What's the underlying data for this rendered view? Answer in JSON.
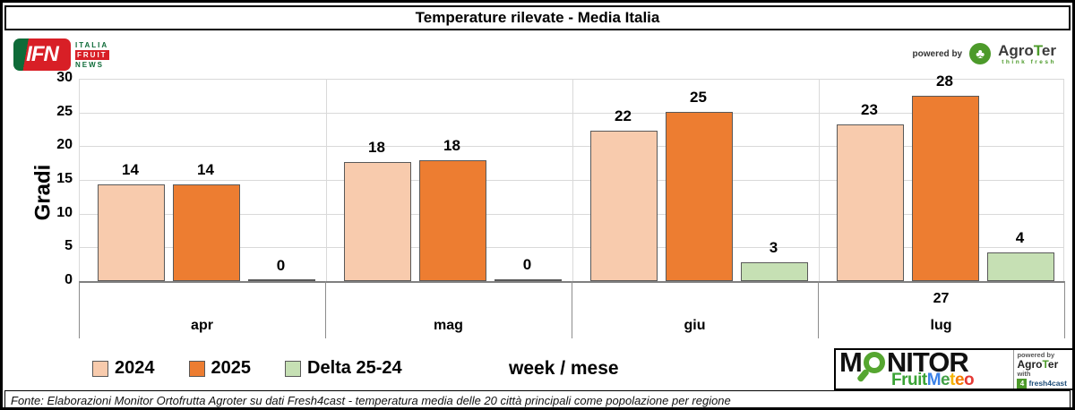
{
  "title": "Temperature rilevate - Media Italia",
  "header": {
    "ifn_logo": {
      "acronym": "IFN",
      "line1": "ITALIA",
      "line2": "FRUIT",
      "line3": "NEWS"
    },
    "powered_by": "powered by",
    "agroter": {
      "pre": "Agro",
      "t": "T",
      "post": "er",
      "tagline": "think fresh"
    }
  },
  "chart_data": {
    "type": "bar",
    "title": "Temperature rilevate - Media Italia",
    "ylabel": "Gradi",
    "xlabel": "week / mese",
    "ylim": [
      0,
      30
    ],
    "yticks": [
      0,
      5,
      10,
      15,
      20,
      25,
      30
    ],
    "grid": true,
    "legend_position": "bottom",
    "categories": [
      "apr",
      "mag",
      "giu",
      "lug"
    ],
    "week_labels": [
      "",
      "",
      "",
      "27"
    ],
    "series": [
      {
        "name": "2024",
        "color": "#F8CBAD",
        "values": [
          14,
          18,
          22,
          23
        ],
        "heights": [
          14.3,
          17.7,
          22.3,
          23.2
        ]
      },
      {
        "name": "2025",
        "color": "#ED7D31",
        "values": [
          14,
          18,
          25,
          28
        ],
        "heights": [
          14.4,
          17.9,
          25.1,
          27.5
        ]
      },
      {
        "name": "Delta 25-24",
        "color": "#C6E0B4",
        "values": [
          0,
          0,
          3,
          4
        ],
        "heights": [
          0.1,
          0.2,
          2.8,
          4.2
        ]
      }
    ]
  },
  "footer": {
    "monitor_logo": {
      "m": "M",
      "rest": "NITOR",
      "fruit": "Fruit",
      "meteo_letters": [
        {
          "ch": "M",
          "color": "#3b82e8"
        },
        {
          "ch": "e",
          "color": "#43a047"
        },
        {
          "ch": "t",
          "color": "#f4b400"
        },
        {
          "ch": "e",
          "color": "#f57c00"
        },
        {
          "ch": "o",
          "color": "#e53935"
        }
      ],
      "powered_by": "powered by",
      "agroter_pre": "Agro",
      "agroter_t": "T",
      "agroter_post": "er",
      "with_label": "with",
      "four": "4",
      "fresh4cast": "fresh4cast"
    },
    "source": "Fonte: Elaborazioni Monitor Ortofrutta Agroter su dati Fresh4cast - temperatura media delle 20 città principali come popolazione per regione"
  },
  "colors": {
    "bar_border": "#595959",
    "gridline": "#d9d9d9",
    "axis": "#808080",
    "ifn_green": "#0e6b38",
    "ifn_red": "#d81f26",
    "agroter_green": "#4c9a2a"
  }
}
